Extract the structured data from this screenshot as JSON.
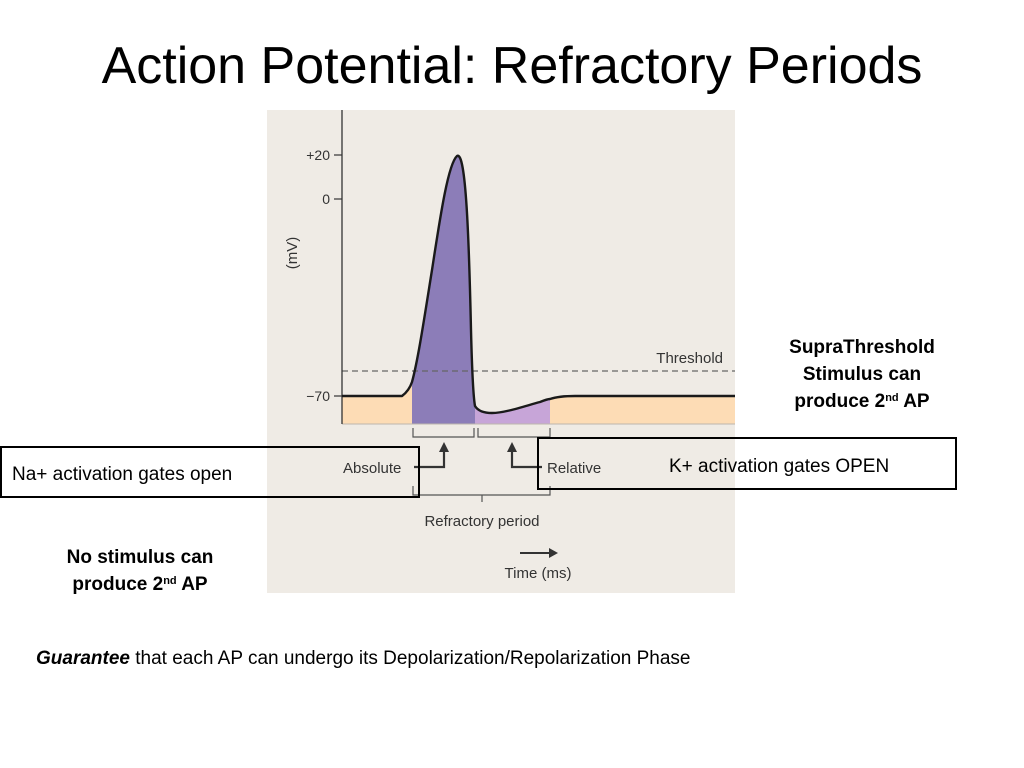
{
  "title": "Action Potential: Refractory Periods",
  "diagram": {
    "tick_plus20": "+20",
    "tick_zero": "0",
    "tick_minus70": "−70",
    "y_axis_label": "(mV)",
    "threshold_label": "Threshold",
    "absolute_label": "Absolute",
    "relative_label": "Relative",
    "refractory_label": "Refractory period",
    "time_label": "Time (ms)",
    "colors": {
      "panel_bg": "#efebe5",
      "absolute_fill": "#8c7db8",
      "relative_fill": "#c7a5d8",
      "baseline_fill": "#fddcb5"
    }
  },
  "callouts": {
    "suprathreshold_line1": "SupraThreshold",
    "suprathreshold_line2": "Stimulus can",
    "suprathreshold_line3_prefix": "produce 2",
    "suprathreshold_sup": "nd",
    "suprathreshold_line3_suffix": " AP",
    "no_stimulus_line1": "No stimulus can",
    "no_stimulus_line2_prefix": "produce 2",
    "no_stimulus_sup": "nd",
    "no_stimulus_line2_suffix": " AP"
  },
  "boxes": {
    "na_gates": "Na+ activation gates open",
    "k_gates": "K+ activation gates OPEN"
  },
  "footer": {
    "emphasis": "Guarantee",
    "rest": " that each AP can undergo its Depolarization/Repolarization Phase"
  }
}
